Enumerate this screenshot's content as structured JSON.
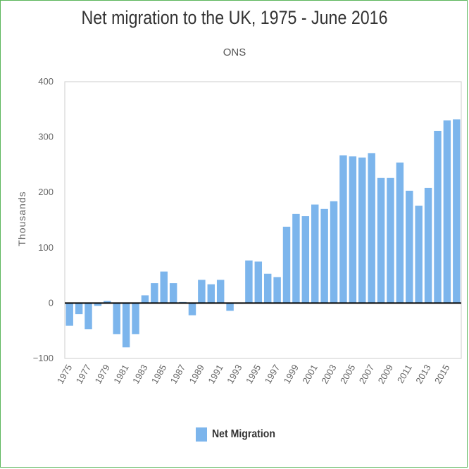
{
  "chart_data": {
    "type": "bar",
    "title": "Net migration to the UK, 1975 - June 2016",
    "subtitle": "ONS",
    "ylabel": "Thousands",
    "xlabel": "",
    "ylim": [
      -100,
      400
    ],
    "yticks": [
      -100,
      0,
      100,
      200,
      300,
      400
    ],
    "grid": false,
    "legend_position": "bottom-center",
    "categories": [
      "1975",
      "1976",
      "1977",
      "1978",
      "1979",
      "1980",
      "1981",
      "1982",
      "1983",
      "1984",
      "1985",
      "1986",
      "1987",
      "1988",
      "1989",
      "1990",
      "1991",
      "1992",
      "1993",
      "1994",
      "1995",
      "1996",
      "1997",
      "1998",
      "1999",
      "2000",
      "2001",
      "2002",
      "2003",
      "2004",
      "2005",
      "2006",
      "2007",
      "2008",
      "2009",
      "2010",
      "2011",
      "2012",
      "2013",
      "2014",
      "2015",
      "2016"
    ],
    "xtick_labels": [
      "1975",
      "1977",
      "1979",
      "1981",
      "1983",
      "1985",
      "1987",
      "1989",
      "1991",
      "1993",
      "1995",
      "1997",
      "1999",
      "2001",
      "2003",
      "2005",
      "2007",
      "2009",
      "2011",
      "2013",
      "2015"
    ],
    "series": [
      {
        "name": "Net Migration",
        "color": "#7cb5ec",
        "values": [
          -41,
          -20,
          -47,
          -5,
          4,
          -56,
          -80,
          -56,
          14,
          36,
          57,
          36,
          2,
          -22,
          42,
          34,
          42,
          -14,
          -1,
          77,
          75,
          53,
          47,
          138,
          161,
          157,
          178,
          170,
          184,
          267,
          265,
          263,
          271,
          226,
          226,
          254,
          203,
          176,
          208,
          311,
          330,
          332
        ]
      }
    ]
  }
}
